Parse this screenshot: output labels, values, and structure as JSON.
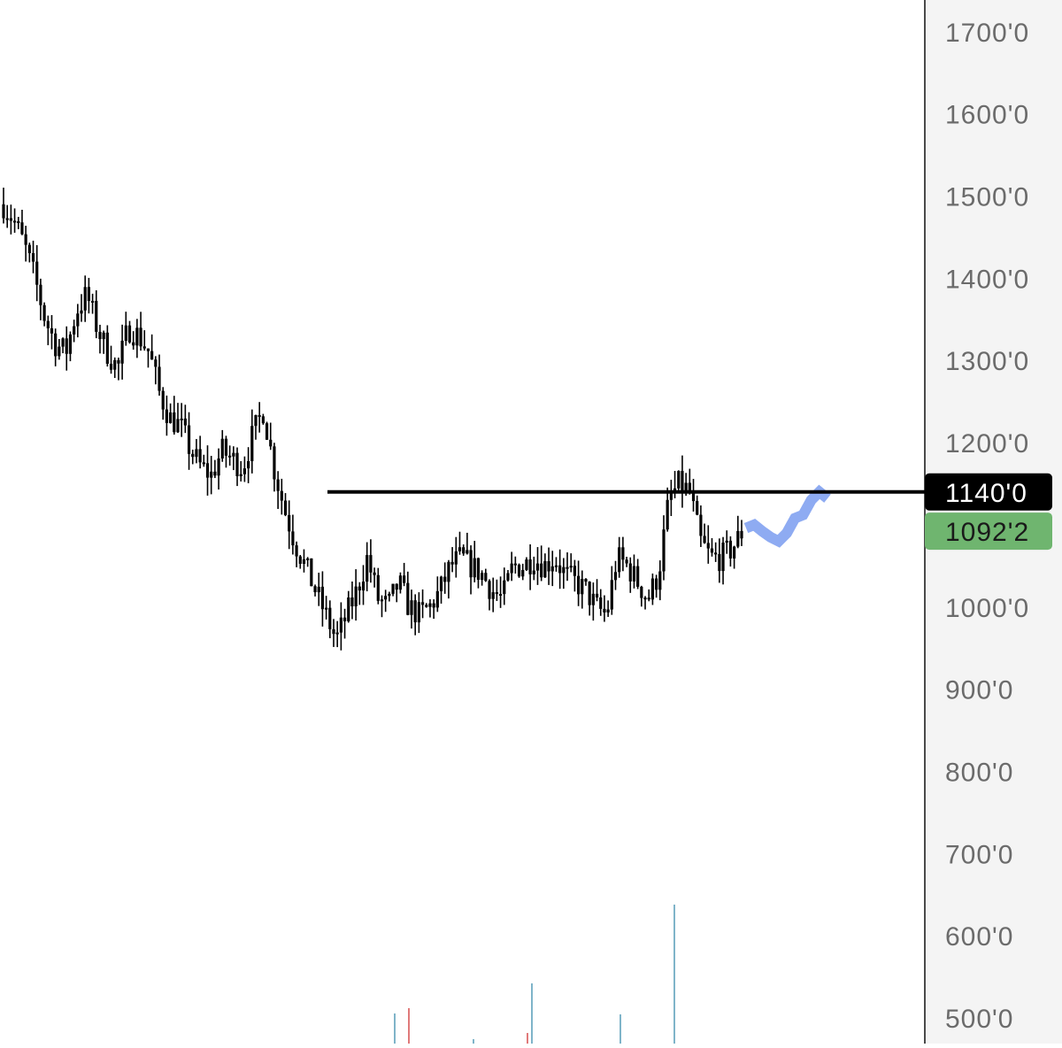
{
  "colors": {
    "background": "#ffffff",
    "axis_panel": "#f4f4f4",
    "axis_border": "#4a4a4a",
    "tick_text": "#6b6b6b",
    "candles": "#000000",
    "level_line": "#000000",
    "level_tag_bg": "#000000",
    "level_tag_text": "#ffffff",
    "last_price_bg": "#6fb56f",
    "last_price_text": "#1a1a1a",
    "projection": "#7a9cf0",
    "volume_up": "#7fb4c9",
    "volume_down": "#e07a7a"
  },
  "chart_data": {
    "type": "candlestick",
    "ylim": [
      450,
      1720
    ],
    "y_ticks": [
      "1700'0",
      "1600'0",
      "1500'0",
      "1400'0",
      "1300'0",
      "1200'0",
      "1000'0",
      "900'0",
      "800'0",
      "700'0",
      "600'0",
      "500'0"
    ],
    "y_tick_values": [
      1700,
      1600,
      1500,
      1400,
      1300,
      1200,
      1000,
      900,
      800,
      700,
      600,
      500
    ],
    "horizontal_level": {
      "value": 1140,
      "label": "1140'0"
    },
    "last_price": {
      "value": 1092.25,
      "label": "1092'2"
    },
    "close_path": [
      1490,
      1470,
      1440,
      1400,
      1350,
      1320,
      1310,
      1360,
      1380,
      1340,
      1310,
      1290,
      1340,
      1330,
      1310,
      1260,
      1230,
      1220,
      1190,
      1170,
      1160,
      1190,
      1180,
      1170,
      1210,
      1240,
      1170,
      1120,
      1080,
      1050,
      1020,
      990,
      960,
      990,
      1020,
      1060,
      1010,
      1000,
      1030,
      1000,
      990,
      1000,
      1020,
      1050,
      1060,
      1050,
      1040,
      1020,
      1010,
      1050,
      1050,
      1060,
      1050,
      1060,
      1040,
      1030,
      1020,
      1000,
      990,
      1060,
      1050,
      1030,
      1010,
      1040,
      1130,
      1150,
      1140,
      1080,
      1060,
      1060,
      1070,
      1090
    ],
    "projection_path": [
      1096,
      1100,
      1092,
      1085,
      1080,
      1090,
      1108,
      1112,
      1130,
      1140,
      1132
    ]
  },
  "volume_bars": [
    {
      "x": 445,
      "h": 34,
      "dir": "up"
    },
    {
      "x": 461,
      "h": 40,
      "dir": "down"
    },
    {
      "x": 534,
      "h": 5,
      "dir": "up"
    },
    {
      "x": 595,
      "h": 12,
      "dir": "down"
    },
    {
      "x": 600,
      "h": 68,
      "dir": "up"
    },
    {
      "x": 700,
      "h": 33,
      "dir": "up"
    },
    {
      "x": 761,
      "h": 157,
      "dir": "up"
    }
  ]
}
